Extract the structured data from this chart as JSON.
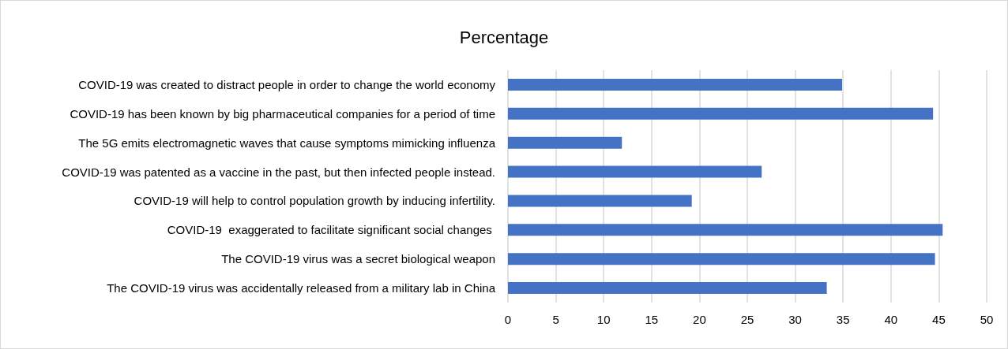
{
  "chart_data": {
    "type": "bar",
    "orientation": "horizontal",
    "title": "Percentage",
    "categories": [
      "COVID-19 was created to distract people in order to change the world economy",
      "COVID-19 has been known by big pharmaceutical companies for a period of time",
      "The 5G emits electromagnetic waves that cause symptoms mimicking influenza",
      "COVID-19 was patented as a vaccine in the past, but then infected people instead.",
      "COVID-19 will help to control population growth by inducing infertility.",
      "COVID-19  exaggerated to facilitate significant social changes ",
      "The COVID-19 virus was a secret biological weapon",
      "The COVID-19 virus was accidentally released from a military lab in China"
    ],
    "values": [
      34.9,
      44.4,
      11.9,
      26.5,
      19.2,
      45.4,
      44.6,
      33.3
    ],
    "color": "#4472c4",
    "xlim": [
      0,
      50
    ],
    "xticks": [
      0,
      5,
      10,
      15,
      20,
      25,
      30,
      35,
      40,
      45,
      50
    ],
    "grid": "x"
  }
}
